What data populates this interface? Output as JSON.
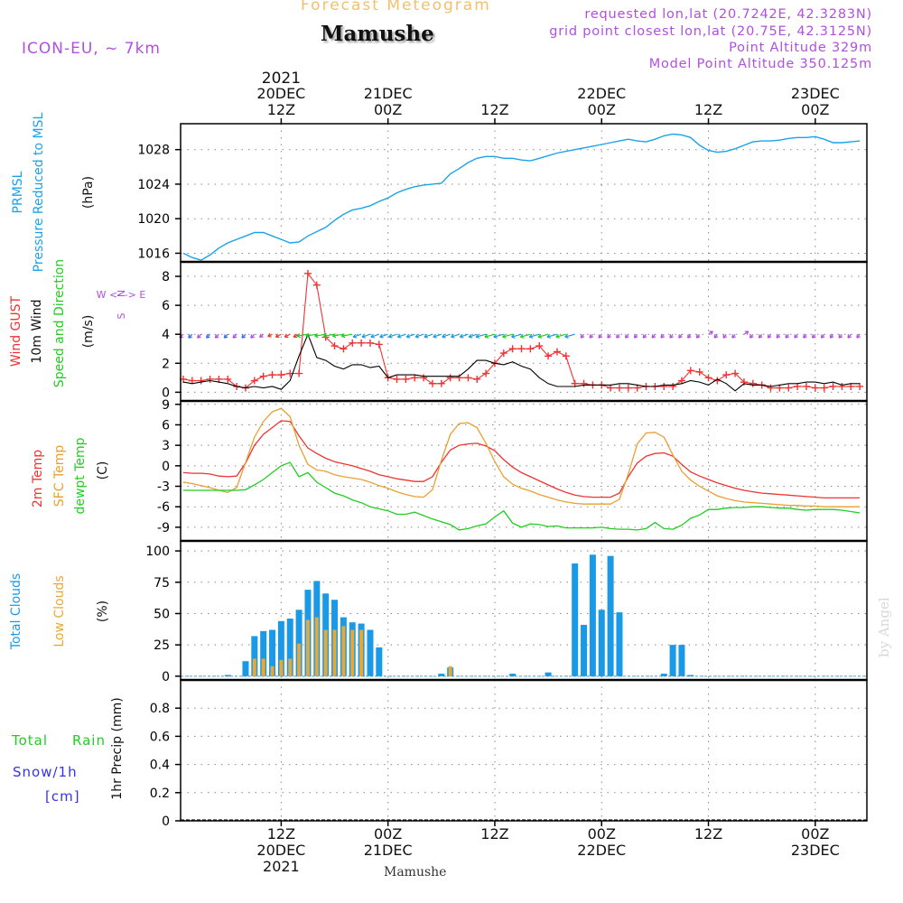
{
  "header": {
    "title": "Forecast Meteogram",
    "station": "Mamushe",
    "model": "ICON-EU, ~ 7km",
    "requested": "requested lon,lat (20.7242E, 42.3283N)",
    "grid_point": "grid point closest lon,lat (20.75E, 42.3125N)",
    "point_alt": "Point Altitude 329m",
    "model_alt": "Model Point Altitude 350.125m",
    "watermark": "by Angel",
    "footer_station": "Mamushe"
  },
  "time_axis": {
    "top_year": "2021",
    "ticks": [
      {
        "t": 0,
        "top": [
          "20DEC",
          "12Z"
        ],
        "bottom": [
          "12Z",
          "20DEC",
          "2021"
        ]
      },
      {
        "t": 12,
        "top": [
          "21DEC",
          "00Z"
        ],
        "bottom": [
          "00Z",
          "21DEC"
        ]
      },
      {
        "t": 24,
        "top": [
          "12Z"
        ],
        "bottom": [
          "12Z"
        ]
      },
      {
        "t": 36,
        "top": [
          "22DEC",
          "00Z"
        ],
        "bottom": [
          "00Z",
          "22DEC"
        ]
      },
      {
        "t": 48,
        "top": [
          "12Z"
        ],
        "bottom": [
          "12Z"
        ]
      },
      {
        "t": 60,
        "top": [
          "23DEC",
          "00Z"
        ],
        "bottom": [
          "00Z",
          "23DEC"
        ]
      }
    ],
    "range_hours": [
      -11.3,
      65.8
    ]
  },
  "colors": {
    "pressure": "#1aa3e8",
    "gust": "#ee3333",
    "wind": "#000000",
    "temp2m": "#ee3333",
    "sfc": "#e8a030",
    "dewpt": "#22cc22",
    "total_clouds": "#1a9ae6",
    "low_clouds": "#e8a838",
    "rain": "#22cc22",
    "snow": "#3333ee",
    "purple": "#b050e0",
    "grid": "#888888",
    "title": "#f0c070",
    "watermark": "#d8d8d8"
  },
  "panels": {
    "pressure": {
      "labels": [
        "PRMSL",
        "Pressure Reduced to MSL",
        "(hPa)"
      ],
      "ylim": [
        1015,
        1031
      ],
      "ticks": [
        1016,
        1020,
        1024,
        1028
      ]
    },
    "wind": {
      "labels": [
        "Wind GUST",
        "10m Wind",
        "Speed and Direction",
        "(m/s)"
      ],
      "ylim": [
        -0.6,
        9
      ],
      "ticks": [
        0,
        2,
        4,
        6,
        8
      ],
      "compass": [
        "N",
        "W <- -> E",
        "S"
      ]
    },
    "temp": {
      "labels": [
        "2m Temp",
        "SFC Temp",
        "dewpt Temp",
        "(C)"
      ],
      "ylim": [
        -11,
        9.5
      ],
      "ticks": [
        -9,
        -6,
        -3,
        0,
        3,
        6,
        9
      ]
    },
    "clouds": {
      "labels": [
        "Total Clouds",
        "Low Clouds",
        "(%)"
      ],
      "ylim": [
        -3,
        108
      ],
      "ticks": [
        0,
        25,
        50,
        75,
        100
      ]
    },
    "precip": {
      "labels": [
        "Total",
        "Rain",
        "Snow/1h",
        "[cm]",
        "1hr Precip (mm)"
      ],
      "ylim": [
        0,
        1.0
      ],
      "ticks": [
        "0",
        "0.2",
        "0.4",
        "0.6",
        "0.8"
      ]
    }
  },
  "chart_data": [
    {
      "type": "line",
      "title": "PRMSL Pressure Reduced to MSL",
      "ylabel": "(hPa)",
      "x_unit": "hours from 20DEC 12Z",
      "x": [
        -11,
        -10,
        -9,
        -8,
        -7,
        -6,
        -5,
        -4,
        -3,
        -2,
        -1,
        0,
        1,
        2,
        3,
        4,
        5,
        6,
        7,
        8,
        9,
        10,
        11,
        12,
        13,
        14,
        15,
        16,
        17,
        18,
        19,
        20,
        21,
        22,
        23,
        24,
        25,
        26,
        27,
        28,
        29,
        30,
        31,
        32,
        33,
        34,
        35,
        36,
        37,
        38,
        39,
        40,
        41,
        42,
        43,
        44,
        45,
        46,
        47,
        48,
        49,
        50,
        51,
        52,
        53,
        54,
        55,
        56,
        57,
        58,
        59,
        60,
        61,
        62,
        63,
        64,
        65
      ],
      "series": [
        {
          "name": "PRMSL",
          "values": [
            1016.0,
            1015.5,
            1015.2,
            1015.8,
            1016.6,
            1017.2,
            1017.6,
            1018.0,
            1018.4,
            1018.4,
            1018.0,
            1017.6,
            1017.2,
            1017.3,
            1018.0,
            1018.5,
            1019.0,
            1019.8,
            1020.5,
            1021.0,
            1021.2,
            1021.5,
            1022.0,
            1022.4,
            1023.0,
            1023.4,
            1023.7,
            1023.9,
            1024.0,
            1024.1,
            1025.2,
            1025.8,
            1026.5,
            1027.0,
            1027.2,
            1027.2,
            1027.0,
            1027.0,
            1026.8,
            1026.7,
            1027.0,
            1027.3,
            1027.6,
            1027.8,
            1028.0,
            1028.2,
            1028.4,
            1028.6,
            1028.8,
            1029.0,
            1029.2,
            1029.0,
            1028.9,
            1029.2,
            1029.6,
            1029.8,
            1029.7,
            1029.4,
            1028.5,
            1027.9,
            1027.7,
            1027.8,
            1028.1,
            1028.5,
            1028.9,
            1029.0,
            1029.0,
            1029.1,
            1029.3,
            1029.4,
            1029.4,
            1029.5,
            1029.2,
            1028.8,
            1028.8,
            1028.9,
            1029.0
          ]
        }
      ],
      "ylim": [
        1015,
        1031
      ]
    },
    {
      "type": "line",
      "title": "Wind GUST / 10m Wind Speed and Direction",
      "ylabel": "(m/s)",
      "x_unit": "hours from 20DEC 12Z",
      "x": [
        -11,
        -10,
        -9,
        -8,
        -7,
        -6,
        -5,
        -4,
        -3,
        -2,
        -1,
        0,
        1,
        2,
        3,
        4,
        5,
        6,
        7,
        8,
        9,
        10,
        11,
        12,
        13,
        14,
        15,
        16,
        17,
        18,
        19,
        20,
        21,
        22,
        23,
        24,
        25,
        26,
        27,
        28,
        29,
        30,
        31,
        32,
        33,
        34,
        35,
        36,
        37,
        38,
        39,
        40,
        41,
        42,
        43,
        44,
        45,
        46,
        47,
        48,
        49,
        50,
        51,
        52,
        53,
        54,
        55,
        56,
        57,
        58,
        59,
        60,
        61,
        62,
        63,
        64,
        65
      ],
      "series": [
        {
          "name": "Wind GUST",
          "values": [
            0.9,
            0.8,
            0.8,
            0.9,
            0.9,
            0.9,
            0.4,
            0.3,
            0.8,
            1.1,
            1.2,
            1.2,
            1.3,
            1.3,
            8.2,
            7.4,
            3.8,
            3.2,
            3.0,
            3.4,
            3.4,
            3.4,
            3.3,
            1.0,
            0.9,
            0.9,
            1.0,
            1.0,
            0.6,
            0.6,
            1.0,
            1.0,
            1.0,
            0.9,
            1.3,
            2.0,
            2.7,
            3.0,
            3.0,
            3.0,
            3.2,
            2.5,
            2.8,
            2.5,
            0.6,
            0.6,
            0.5,
            0.5,
            0.3,
            0.3,
            0.3,
            0.3,
            0.4,
            0.4,
            0.4,
            0.4,
            0.8,
            1.5,
            1.4,
            1.0,
            0.8,
            1.2,
            1.3,
            0.7,
            0.6,
            0.5,
            0.3,
            0.3,
            0.3,
            0.4,
            0.4,
            0.3,
            0.3,
            0.4,
            0.4,
            0.4,
            0.4
          ]
        },
        {
          "name": "10m Wind",
          "values": [
            0.7,
            0.6,
            0.7,
            0.8,
            0.7,
            0.6,
            0.4,
            0.3,
            0.4,
            0.3,
            0.4,
            0.2,
            0.8,
            2.5,
            4.0,
            2.4,
            2.2,
            1.8,
            1.6,
            1.9,
            1.9,
            1.7,
            1.8,
            1.0,
            1.2,
            1.2,
            1.2,
            1.1,
            1.1,
            1.1,
            1.1,
            1.1,
            1.6,
            2.2,
            2.2,
            2.0,
            1.9,
            2.1,
            1.8,
            1.6,
            1.0,
            0.6,
            0.4,
            0.4,
            0.4,
            0.5,
            0.5,
            0.5,
            0.5,
            0.6,
            0.6,
            0.5,
            0.4,
            0.4,
            0.5,
            0.5,
            0.6,
            0.8,
            0.7,
            0.5,
            0.9,
            0.6,
            0.1,
            0.6,
            0.5,
            0.5,
            0.4,
            0.5,
            0.6,
            0.6,
            0.7,
            0.7,
            0.6,
            0.7,
            0.5,
            0.6,
            0.6
          ]
        }
      ],
      "ylim": [
        -0.6,
        9
      ]
    },
    {
      "type": "line",
      "title": "2m Temp / SFC Temp / dewpt Temp",
      "ylabel": "(C)",
      "x_unit": "hours from 20DEC 12Z",
      "x": [
        -11,
        -10,
        -9,
        -8,
        -7,
        -6,
        -5,
        -4,
        -3,
        -2,
        -1,
        0,
        1,
        2,
        3,
        4,
        5,
        6,
        7,
        8,
        9,
        10,
        11,
        12,
        13,
        14,
        15,
        16,
        17,
        18,
        19,
        20,
        21,
        22,
        23,
        24,
        25,
        26,
        27,
        28,
        29,
        30,
        31,
        32,
        33,
        34,
        35,
        36,
        37,
        38,
        39,
        40,
        41,
        42,
        43,
        44,
        45,
        46,
        47,
        48,
        49,
        50,
        51,
        52,
        53,
        54,
        55,
        56,
        57,
        58,
        59,
        60,
        61,
        62,
        63,
        64,
        65
      ],
      "series": [
        {
          "name": "2m Temp",
          "values": [
            -1.0,
            -1.1,
            -1.1,
            -1.2,
            -1.5,
            -1.6,
            -1.5,
            0.4,
            3.0,
            4.6,
            5.6,
            6.6,
            6.5,
            4.4,
            2.6,
            1.8,
            1.1,
            0.6,
            0.3,
            0.0,
            -0.4,
            -0.8,
            -1.3,
            -1.6,
            -1.9,
            -2.1,
            -2.3,
            -2.3,
            -1.6,
            0.5,
            2.3,
            3.0,
            3.2,
            3.3,
            2.9,
            2.2,
            0.9,
            -0.2,
            -1.0,
            -1.6,
            -2.2,
            -2.8,
            -3.4,
            -3.9,
            -4.3,
            -4.5,
            -4.6,
            -4.6,
            -4.6,
            -4.0,
            -1.6,
            0.4,
            1.4,
            1.8,
            1.9,
            1.4,
            0.2,
            -0.9,
            -1.5,
            -2.0,
            -2.5,
            -2.9,
            -3.3,
            -3.6,
            -3.8,
            -4.0,
            -4.1,
            -4.2,
            -4.3,
            -4.4,
            -4.5,
            -4.6,
            -4.7,
            -4.7,
            -4.7,
            -4.7,
            -4.7
          ]
        },
        {
          "name": "SFC Temp",
          "values": [
            -2.4,
            -2.6,
            -2.9,
            -3.2,
            -3.6,
            -3.9,
            -3.2,
            0.5,
            4.2,
            6.5,
            7.9,
            8.4,
            7.2,
            3.0,
            0.2,
            -0.6,
            -0.8,
            -1.3,
            -1.6,
            -1.8,
            -2.0,
            -2.4,
            -2.9,
            -3.3,
            -3.8,
            -4.2,
            -4.5,
            -4.6,
            -3.5,
            0.8,
            4.6,
            6.2,
            6.3,
            5.6,
            3.3,
            0.6,
            -1.6,
            -2.7,
            -3.3,
            -3.7,
            -4.2,
            -4.6,
            -5.0,
            -5.3,
            -5.5,
            -5.6,
            -5.6,
            -5.6,
            -5.6,
            -4.9,
            -1.2,
            3.2,
            4.8,
            4.9,
            4.2,
            1.6,
            -0.8,
            -2.1,
            -3.0,
            -3.7,
            -4.4,
            -4.8,
            -5.1,
            -5.3,
            -5.4,
            -5.5,
            -5.6,
            -5.7,
            -5.8,
            -5.8,
            -5.9,
            -5.9,
            -6.0,
            -6.0,
            -6.0,
            -6.0,
            -6.0
          ]
        },
        {
          "name": "dewpt Temp",
          "values": [
            -3.6,
            -3.6,
            -3.6,
            -3.6,
            -3.6,
            -3.6,
            -3.6,
            -3.5,
            -2.8,
            -2.0,
            -1.0,
            0.0,
            0.5,
            -1.6,
            -1.0,
            -2.4,
            -3.2,
            -4.0,
            -4.4,
            -5.0,
            -5.4,
            -6.0,
            -6.3,
            -6.6,
            -7.1,
            -7.1,
            -6.8,
            -7.3,
            -7.8,
            -8.2,
            -8.6,
            -9.4,
            -9.2,
            -8.8,
            -8.5,
            -7.5,
            -6.6,
            -8.4,
            -9.0,
            -8.5,
            -8.6,
            -8.9,
            -8.8,
            -9.1,
            -9.1,
            -9.1,
            -9.1,
            -9.0,
            -9.2,
            -9.3,
            -9.3,
            -9.4,
            -9.2,
            -8.3,
            -9.2,
            -9.3,
            -8.7,
            -7.7,
            -7.2,
            -6.4,
            -6.4,
            -6.2,
            -6.1,
            -6.1,
            -6.0,
            -6.0,
            -6.1,
            -6.2,
            -6.2,
            -6.4,
            -6.5,
            -6.4,
            -6.4,
            -6.4,
            -6.5,
            -6.7,
            -6.9
          ]
        }
      ],
      "ylim": [
        -11,
        9.5
      ]
    },
    {
      "type": "bar",
      "title": "Total Clouds / Low Clouds",
      "ylabel": "(%)",
      "x_unit": "hours from 20DEC 12Z",
      "x": [
        -11,
        -10,
        -9,
        -8,
        -7,
        -6,
        -5,
        -4,
        -3,
        -2,
        -1,
        0,
        1,
        2,
        3,
        4,
        5,
        6,
        7,
        8,
        9,
        10,
        11,
        12,
        13,
        14,
        15,
        16,
        17,
        18,
        19,
        20,
        21,
        22,
        23,
        24,
        25,
        26,
        27,
        28,
        29,
        30,
        31,
        32,
        33,
        34,
        35,
        36,
        37,
        38,
        39,
        40,
        41,
        42,
        43,
        44,
        45,
        46,
        47,
        48,
        49,
        50,
        51,
        52,
        53,
        54,
        55,
        56,
        57,
        58,
        59,
        60,
        61,
        62,
        63,
        64,
        65
      ],
      "series": [
        {
          "name": "Total Clouds",
          "values": [
            0,
            0,
            0,
            0,
            0,
            1,
            0,
            12,
            32,
            36,
            37,
            44,
            46,
            53,
            69,
            76,
            66,
            61,
            47,
            43,
            42,
            37,
            23,
            0,
            0,
            0,
            0,
            0,
            0,
            2,
            7,
            0,
            0,
            0,
            0,
            0,
            0,
            2,
            0,
            0,
            0,
            3,
            0,
            0,
            90,
            41,
            97,
            53,
            96,
            51,
            0,
            0,
            0,
            0,
            2,
            25,
            25,
            1,
            0,
            0,
            0,
            0,
            0,
            0,
            0,
            0,
            0,
            0,
            0,
            0,
            0,
            0,
            0,
            0,
            0,
            0,
            0
          ]
        },
        {
          "name": "Low Clouds",
          "values": [
            0,
            0,
            0,
            0,
            0,
            0,
            0,
            0,
            14,
            14,
            8,
            13,
            14,
            26,
            45,
            47,
            37,
            37,
            40,
            37,
            37,
            0,
            0,
            0,
            0,
            0,
            0,
            0,
            0,
            0,
            8,
            0,
            0,
            0,
            0,
            0,
            0,
            0,
            0,
            0,
            0,
            0,
            0,
            0,
            0,
            0,
            0,
            0,
            0,
            0,
            0,
            0,
            0,
            0,
            0,
            0,
            0,
            0,
            0,
            0,
            0,
            0,
            0,
            0,
            0,
            0,
            0,
            0,
            0,
            0,
            0,
            0,
            0,
            0,
            0,
            0,
            0
          ]
        }
      ],
      "ylim": [
        -3,
        108
      ]
    },
    {
      "type": "bar",
      "title": "1hr Precip (mm)",
      "ylabel": "1hr Precip (mm)",
      "x_unit": "hours from 20DEC 12Z",
      "series": [
        {
          "name": "Total Rain",
          "values": []
        }
      ],
      "ylim": [
        0,
        1.0
      ]
    }
  ]
}
